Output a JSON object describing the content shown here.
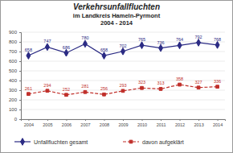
{
  "chart_data": {
    "type": "line",
    "title": "Verkehrsunfallfluchten",
    "subtitle": [
      "im Landkreis Hameln-Pyrmont",
      "2004 - 2014"
    ],
    "categories": [
      "2004",
      "2005",
      "2006",
      "2007",
      "2008",
      "2009",
      "2010",
      "2011",
      "2012",
      "2013",
      "2014"
    ],
    "series": [
      {
        "name": "Unfallfluchten gesamt",
        "color": "#2b2b84",
        "marker": "diamond",
        "line_style": "solid",
        "values": [
          658,
          747,
          686,
          780,
          658,
          702,
          765,
          736,
          764,
          792,
          768
        ]
      },
      {
        "name": "davon aufgeklärt",
        "color": "#c0302b",
        "marker": "square",
        "line_style": "dashed",
        "values": [
          261,
          294,
          252,
          281,
          256,
          293,
          323,
          313,
          358,
          327,
          336
        ]
      }
    ],
    "ylim": [
      0,
      900
    ],
    "yticks": [
      0,
      100,
      200,
      300,
      400,
      500,
      600,
      700,
      800,
      900
    ],
    "grid": true,
    "data_labels": true,
    "legend": "bottom"
  }
}
